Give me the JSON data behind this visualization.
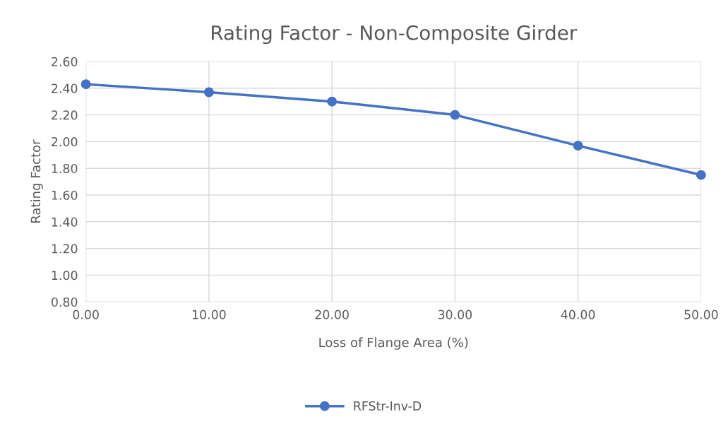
{
  "chart_data": {
    "type": "line",
    "title": "Rating Factor - Non-Composite Girder",
    "xlabel": "Loss of Flange Area (%)",
    "ylabel": "Rating Factor",
    "x": [
      0,
      10,
      20,
      30,
      40,
      50
    ],
    "series": [
      {
        "name": "RFStr-Inv-D",
        "color": "#4472c4",
        "values": [
          2.43,
          2.37,
          2.3,
          2.2,
          1.97,
          1.75
        ]
      }
    ],
    "xlim": [
      0,
      50
    ],
    "xticks": [
      {
        "value": 0,
        "label": "0.00"
      },
      {
        "value": 10,
        "label": "10.00"
      },
      {
        "value": 20,
        "label": "20.00"
      },
      {
        "value": 30,
        "label": "30.00"
      },
      {
        "value": 40,
        "label": "40.00"
      },
      {
        "value": 50,
        "label": "50.00"
      }
    ],
    "ylim": [
      0.8,
      2.6
    ],
    "yticks": [
      {
        "value": 0.8,
        "label": "0.80"
      },
      {
        "value": 1.0,
        "label": "1.00"
      },
      {
        "value": 1.2,
        "label": "1.20"
      },
      {
        "value": 1.4,
        "label": "1.40"
      },
      {
        "value": 1.6,
        "label": "1.60"
      },
      {
        "value": 1.8,
        "label": "1.80"
      },
      {
        "value": 2.0,
        "label": "2.00"
      },
      {
        "value": 2.2,
        "label": "2.20"
      },
      {
        "value": 2.4,
        "label": "2.40"
      },
      {
        "value": 2.6,
        "label": "2.60"
      }
    ],
    "grid": true,
    "legend": "bottom",
    "marker": "circle",
    "line_style": "solid"
  }
}
